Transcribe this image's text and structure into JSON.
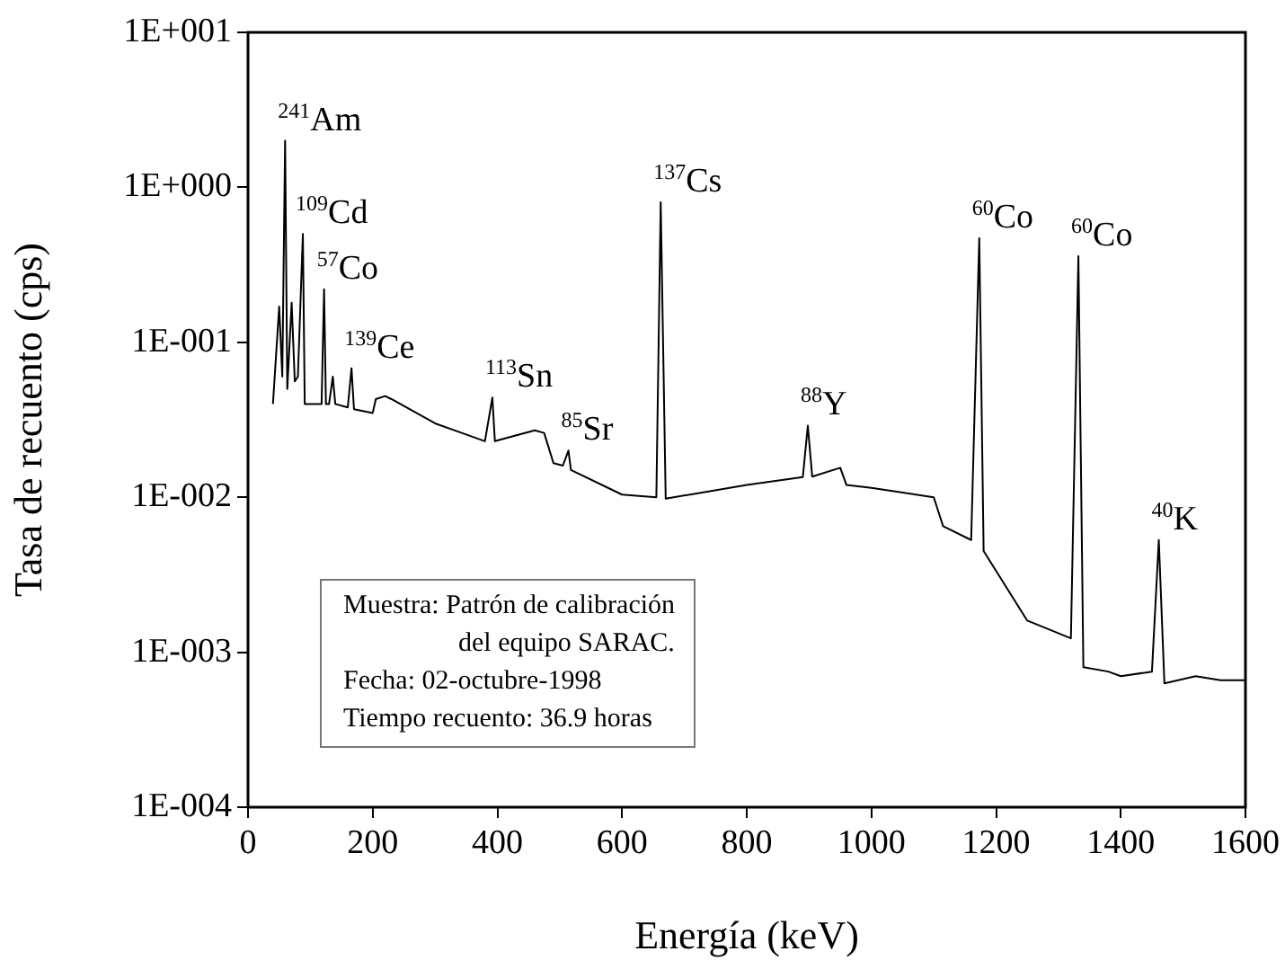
{
  "chart_data": {
    "type": "line",
    "xlabel": "Energía (keV)",
    "ylabel": "Tasa de recuento (cps)",
    "log": "y",
    "grid": false,
    "legend": false,
    "marker": "none",
    "line_style": "solid",
    "xlim": [
      0,
      1600
    ],
    "xticks": [
      0,
      200,
      400,
      600,
      800,
      1000,
      1200,
      1400,
      1600
    ],
    "ylim": [
      0.0001,
      10
    ],
    "yticks": [
      {
        "value": 0.0001,
        "label": "1E-004"
      },
      {
        "value": 0.001,
        "label": "1E-003"
      },
      {
        "value": 0.01,
        "label": "1E-002"
      },
      {
        "value": 0.1,
        "label": "1E-001"
      },
      {
        "value": 1,
        "label": "1E+000"
      },
      {
        "value": 10,
        "label": "1E+001"
      }
    ],
    "series": [
      {
        "color": "#000000",
        "x": [
          40,
          50,
          55,
          59.5,
          63,
          70,
          75,
          80,
          88,
          91,
          110,
          118,
          122,
          125,
          130,
          136,
          140,
          160,
          166,
          170,
          200,
          205,
          220,
          230,
          300,
          380,
          392,
          396,
          460,
          475,
          490,
          505,
          514,
          518,
          600,
          655,
          662,
          670,
          800,
          890,
          898,
          905,
          950,
          960,
          1000,
          1100,
          1115,
          1160,
          1173,
          1180,
          1250,
          1320,
          1332,
          1340,
          1380,
          1400,
          1450,
          1461,
          1470,
          1520,
          1560,
          1600
        ],
        "values": [
          0.04,
          0.17,
          0.06,
          2.0,
          0.05,
          0.18,
          0.056,
          0.06,
          0.5,
          0.04,
          0.04,
          0.04,
          0.22,
          0.04,
          0.04,
          0.06,
          0.04,
          0.038,
          0.068,
          0.037,
          0.035,
          0.043,
          0.045,
          0.043,
          0.03,
          0.023,
          0.044,
          0.023,
          0.027,
          0.026,
          0.0166,
          0.016,
          0.02,
          0.015,
          0.0104,
          0.01,
          0.8,
          0.0098,
          0.012,
          0.0135,
          0.029,
          0.0136,
          0.0155,
          0.012,
          0.0115,
          0.01,
          0.0065,
          0.0053,
          0.47,
          0.0045,
          0.0016,
          0.00123,
          0.36,
          0.0008,
          0.00075,
          0.0007,
          0.00075,
          0.0053,
          0.00063,
          0.0007,
          0.00066,
          0.00066
        ]
      }
    ],
    "annotations": [
      {
        "text": "$^{241}$Am",
        "x": 59.5,
        "y": 2.0
      },
      {
        "text": "$^{109}$Cd",
        "x": 88,
        "y": 0.5
      },
      {
        "text": "$^{57}$Co",
        "x": 122,
        "y": 0.22
      },
      {
        "text": "$^{139}$Ce",
        "x": 166,
        "y": 0.068
      },
      {
        "text": "$^{113}$Sn",
        "x": 392,
        "y": 0.044
      },
      {
        "text": "$^{85}$Sr",
        "x": 514,
        "y": 0.02
      },
      {
        "text": "$^{137}$Cs",
        "x": 662,
        "y": 0.8
      },
      {
        "text": "$^{88}$Y",
        "x": 898,
        "y": 0.029
      },
      {
        "text": "$^{60}$Co",
        "x": 1173,
        "y": 0.47
      },
      {
        "text": "$^{60}$Co",
        "x": 1332,
        "y": 0.36
      },
      {
        "text": "$^{40}$K",
        "x": 1461,
        "y": 0.0053
      },
      "Muestra: Patrón de calibración",
      "del equipo SARAC.",
      "Fecha: 02-octubre-1998",
      "Tiempo recuento: 36.9 horas"
    ]
  }
}
